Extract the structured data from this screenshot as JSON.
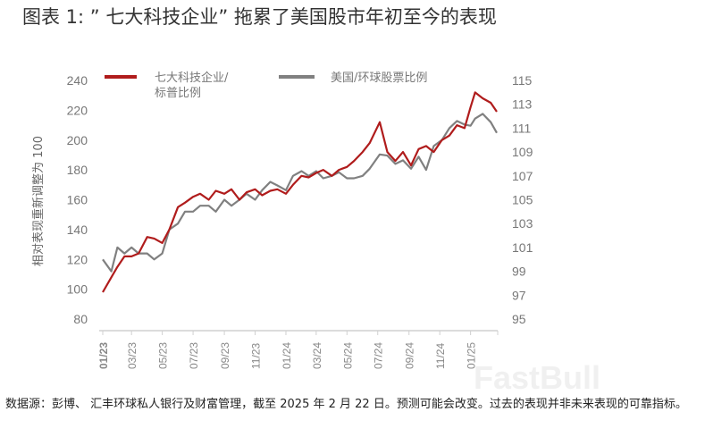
{
  "title": "图表 1: ” 七大科技企业” 拖累了美国股市年初至今的表现",
  "footnote": "数据源：彭博、 汇丰环球私人银行及财富管理，截至 2025 年 2 月 22 日。预测可能会改变。过去的表现并非未来表现的可靠指标。",
  "watermark": "FastBull",
  "chart_data": {
    "type": "line",
    "title": "",
    "ylabel": "相对表现重新调整为 100",
    "xlabel": "",
    "ylim": [
      80,
      240
    ],
    "y_ticks": [
      "240",
      "220",
      "200",
      "180",
      "160",
      "140",
      "120",
      "100",
      "80"
    ],
    "y2lim": [
      95,
      115
    ],
    "y2_ticks": [
      "115",
      "113",
      "111",
      "109",
      "107",
      "105",
      "103",
      "101",
      "99",
      "97",
      "95"
    ],
    "x_ticks": [
      "01/23",
      "03/23",
      "05/23",
      "07/23",
      "09/23",
      "11/23",
      "01/24",
      "03/24",
      "05/24",
      "07/24",
      "09/24",
      "11/24",
      "01/25"
    ],
    "x_tick_dates": [
      "2023-01-01",
      "2023-03-01",
      "2023-05-01",
      "2023-07-01",
      "2023-09-01",
      "2023-11-01",
      "2024-01-01",
      "2024-03-01",
      "2024-05-01",
      "2024-07-01",
      "2024-09-01",
      "2024-11-01",
      "2025-01-01"
    ],
    "grid": false,
    "legend_position": "top",
    "series": [
      {
        "name": "七大科技企业/标普比例",
        "axis": "left",
        "color": "#b01c1c",
        "points": [
          [
            "2023-01-03",
            98
          ],
          [
            "2023-01-20",
            108
          ],
          [
            "2023-02-01",
            115
          ],
          [
            "2023-02-15",
            122
          ],
          [
            "2023-03-01",
            122
          ],
          [
            "2023-03-15",
            124
          ],
          [
            "2023-04-01",
            135
          ],
          [
            "2023-04-15",
            134
          ],
          [
            "2023-05-01",
            131
          ],
          [
            "2023-05-15",
            140
          ],
          [
            "2023-06-01",
            155
          ],
          [
            "2023-06-15",
            158
          ],
          [
            "2023-07-01",
            162
          ],
          [
            "2023-07-15",
            164
          ],
          [
            "2023-08-01",
            160
          ],
          [
            "2023-08-15",
            166
          ],
          [
            "2023-09-01",
            164
          ],
          [
            "2023-09-15",
            167
          ],
          [
            "2023-10-01",
            160
          ],
          [
            "2023-10-15",
            165
          ],
          [
            "2023-11-01",
            167
          ],
          [
            "2023-11-15",
            163
          ],
          [
            "2023-12-01",
            166
          ],
          [
            "2023-12-15",
            167
          ],
          [
            "2024-01-01",
            164
          ],
          [
            "2024-01-15",
            170
          ],
          [
            "2024-02-01",
            176
          ],
          [
            "2024-02-15",
            175
          ],
          [
            "2024-03-01",
            178
          ],
          [
            "2024-03-15",
            180
          ],
          [
            "2024-04-01",
            176
          ],
          [
            "2024-04-15",
            180
          ],
          [
            "2024-05-01",
            182
          ],
          [
            "2024-05-15",
            186
          ],
          [
            "2024-06-01",
            192
          ],
          [
            "2024-06-15",
            198
          ],
          [
            "2024-07-05",
            212
          ],
          [
            "2024-07-20",
            192
          ],
          [
            "2024-08-05",
            186
          ],
          [
            "2024-08-20",
            192
          ],
          [
            "2024-09-05",
            183
          ],
          [
            "2024-09-20",
            194
          ],
          [
            "2024-10-05",
            196
          ],
          [
            "2024-10-20",
            192
          ],
          [
            "2024-11-05",
            200
          ],
          [
            "2024-11-20",
            203
          ],
          [
            "2024-12-05",
            210
          ],
          [
            "2024-12-20",
            208
          ],
          [
            "2025-01-01",
            222
          ],
          [
            "2025-01-10",
            232
          ],
          [
            "2025-01-25",
            228
          ],
          [
            "2025-02-10",
            225
          ],
          [
            "2025-02-22",
            219
          ]
        ]
      },
      {
        "name": "美国/环球股票比例",
        "axis": "right",
        "color": "#808080",
        "points": [
          [
            "2023-01-03",
            100
          ],
          [
            "2023-01-20",
            99
          ],
          [
            "2023-02-01",
            101
          ],
          [
            "2023-02-15",
            100.5
          ],
          [
            "2023-03-01",
            101
          ],
          [
            "2023-03-15",
            100.5
          ],
          [
            "2023-04-01",
            100.5
          ],
          [
            "2023-04-15",
            100
          ],
          [
            "2023-05-01",
            100.5
          ],
          [
            "2023-05-15",
            102.5
          ],
          [
            "2023-06-01",
            103
          ],
          [
            "2023-06-15",
            104
          ],
          [
            "2023-07-01",
            104
          ],
          [
            "2023-07-15",
            104.5
          ],
          [
            "2023-08-01",
            104.5
          ],
          [
            "2023-08-15",
            104
          ],
          [
            "2023-09-01",
            105
          ],
          [
            "2023-09-15",
            104.5
          ],
          [
            "2023-10-01",
            105
          ],
          [
            "2023-10-15",
            105.5
          ],
          [
            "2023-11-01",
            105
          ],
          [
            "2023-11-15",
            105.8
          ],
          [
            "2023-12-01",
            106.5
          ],
          [
            "2023-12-15",
            106.2
          ],
          [
            "2024-01-01",
            105.8
          ],
          [
            "2024-01-15",
            107
          ],
          [
            "2024-02-01",
            107.4
          ],
          [
            "2024-02-15",
            107
          ],
          [
            "2024-03-01",
            107.4
          ],
          [
            "2024-03-15",
            106.8
          ],
          [
            "2024-04-01",
            107
          ],
          [
            "2024-04-15",
            107.3
          ],
          [
            "2024-05-01",
            106.8
          ],
          [
            "2024-05-15",
            106.8
          ],
          [
            "2024-06-01",
            107
          ],
          [
            "2024-06-15",
            107.6
          ],
          [
            "2024-07-05",
            108.8
          ],
          [
            "2024-07-20",
            108.7
          ],
          [
            "2024-08-05",
            108
          ],
          [
            "2024-08-20",
            108.3
          ],
          [
            "2024-09-05",
            107.6
          ],
          [
            "2024-09-20",
            108.6
          ],
          [
            "2024-10-05",
            107.5
          ],
          [
            "2024-10-20",
            109.5
          ],
          [
            "2024-11-05",
            110
          ],
          [
            "2024-11-20",
            111
          ],
          [
            "2024-12-05",
            111.6
          ],
          [
            "2024-12-20",
            111.3
          ],
          [
            "2025-01-01",
            111.2
          ],
          [
            "2025-01-10",
            111.8
          ],
          [
            "2025-01-25",
            112.2
          ],
          [
            "2025-02-10",
            111.5
          ],
          [
            "2025-02-22",
            110.6
          ]
        ]
      }
    ]
  }
}
